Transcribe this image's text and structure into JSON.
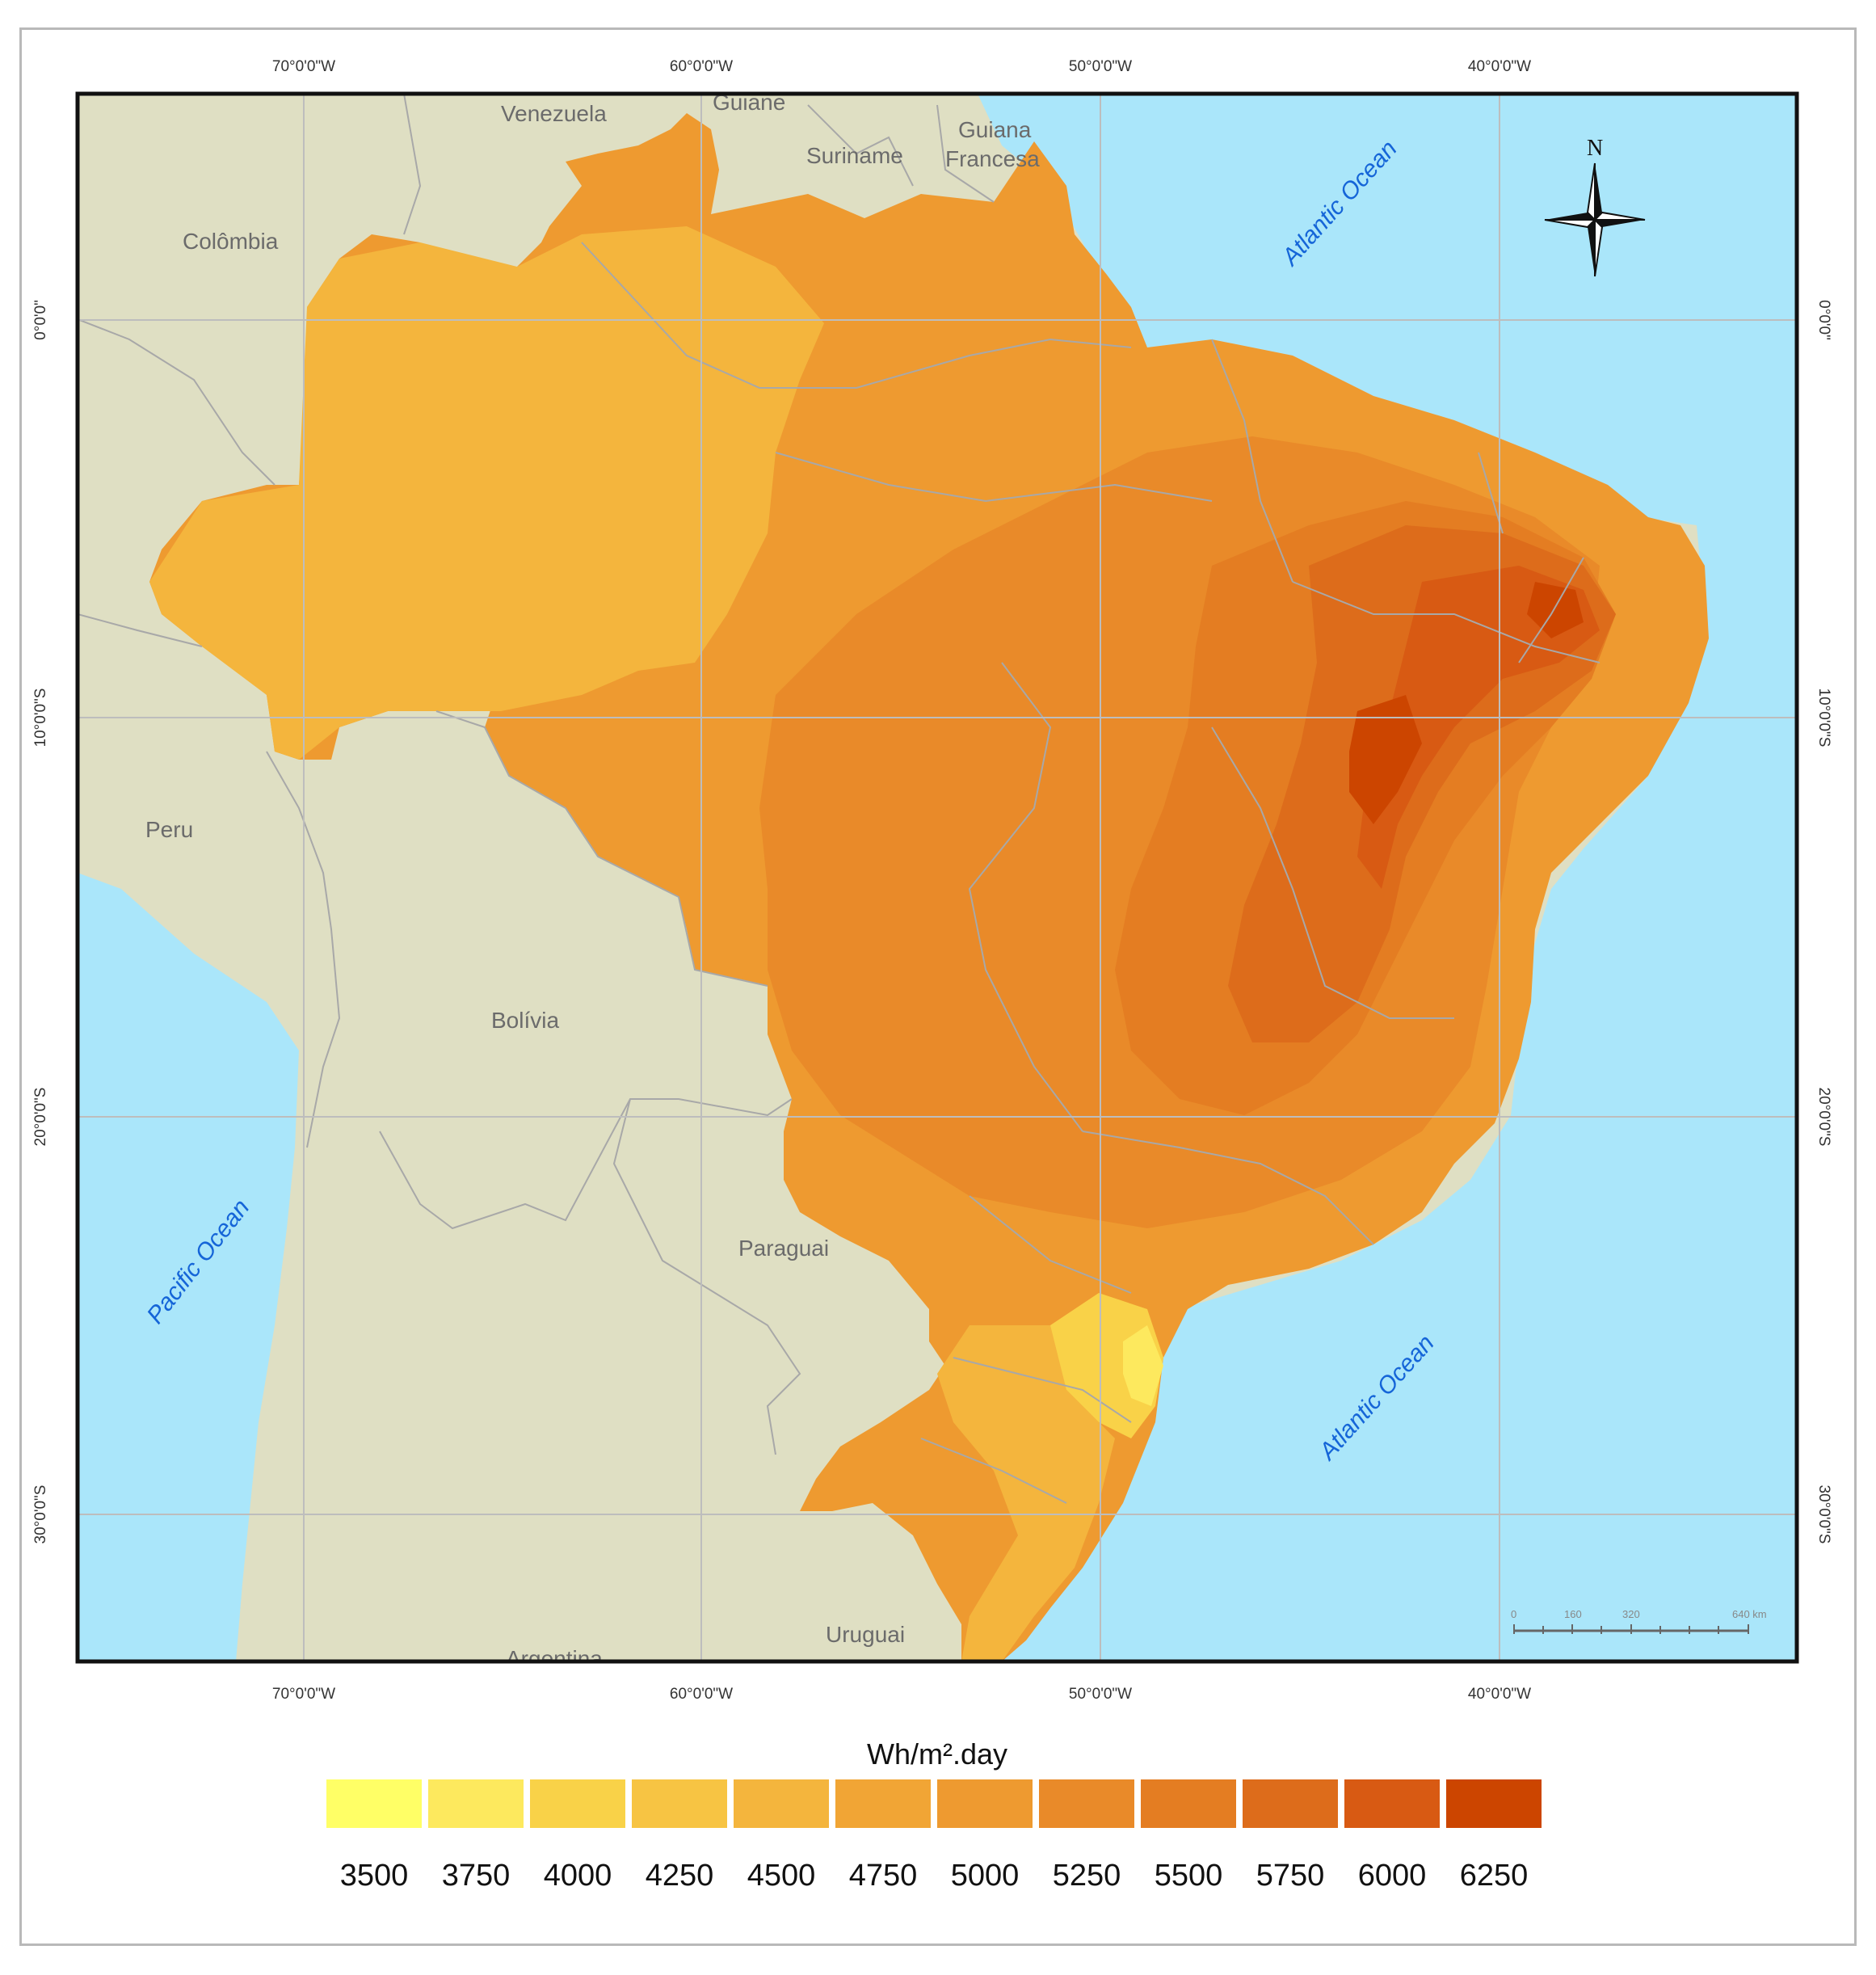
{
  "graticule": {
    "longitudes": [
      "70°0'0\"W",
      "60°0'0\"W",
      "50°0'0\"W",
      "40°0'0\"W"
    ],
    "latitudes": [
      "0°0'0\"",
      "10°0'0\"S",
      "20°0'0\"S",
      "30°0'0\"S"
    ]
  },
  "countries": {
    "venezuela": "Venezuela",
    "guiane": "Guiane",
    "suriname": "Suriname",
    "guiana_francesa_1": "Guiana",
    "guiana_francesa_2": "Francesa",
    "colombia": "Colômbia",
    "peru": "Peru",
    "bolivia": "Bolívia",
    "paraguai": "Paraguai",
    "uruguai": "Uruguai",
    "argentina": "Argentina"
  },
  "oceans": {
    "atlantic_north": "Atlantic Ocean",
    "atlantic_south": "Atlantic Ocean",
    "pacific": "Pacific Ocean"
  },
  "north_arrow": {
    "label": "N",
    "icon": "north-arrow-icon"
  },
  "scale_bar": {
    "labels": [
      "0",
      "160",
      "320",
      "",
      "640 km"
    ]
  },
  "colors": {
    "ocean": "#aae6fa",
    "land": "#dfdfc3",
    "border": "#a8a8a8",
    "frame": "#111111"
  },
  "legend": {
    "title": "Wh/m².day",
    "classes": [
      {
        "value": "3500",
        "color": "#ffff66"
      },
      {
        "value": "3750",
        "color": "#fde95e"
      },
      {
        "value": "4000",
        "color": "#f9d248"
      },
      {
        "value": "4250",
        "color": "#f7c443"
      },
      {
        "value": "4500",
        "color": "#f4b53d"
      },
      {
        "value": "4750",
        "color": "#f1a535"
      },
      {
        "value": "5000",
        "color": "#ee9a30"
      },
      {
        "value": "5250",
        "color": "#e98a29"
      },
      {
        "value": "5500",
        "color": "#e47d22"
      },
      {
        "value": "5750",
        "color": "#dd6c1b"
      },
      {
        "value": "6000",
        "color": "#d85a13"
      },
      {
        "value": "6250",
        "color": "#cc4500"
      }
    ]
  }
}
